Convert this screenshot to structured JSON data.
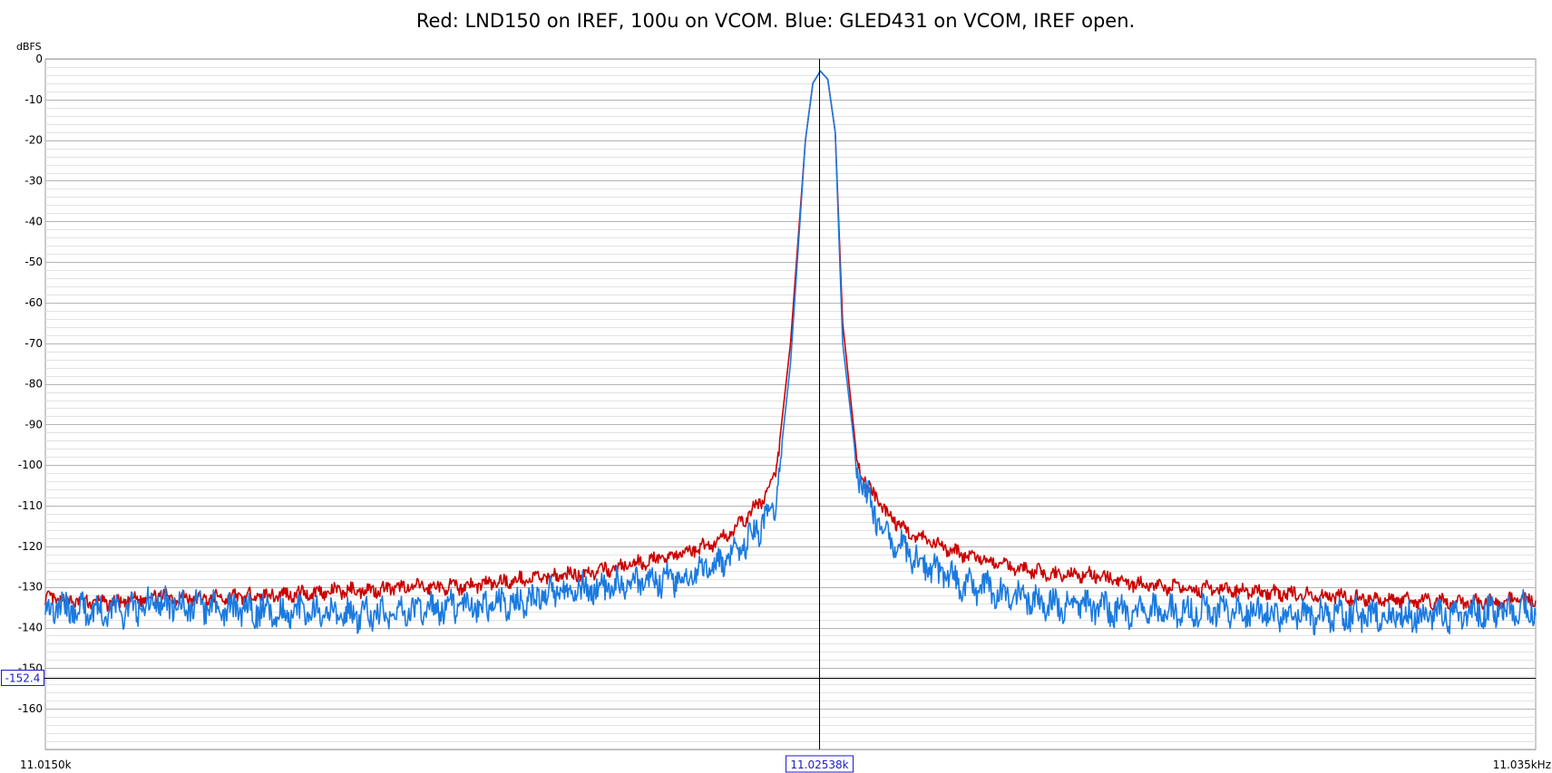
{
  "chart_data": {
    "type": "line",
    "title": "Red: LND150 on IREF, 100u on VCOM. Blue: GLED431 on VCOM, IREF open.",
    "ylabel": "dBFS",
    "xlabel": "",
    "xlim": [
      11.015,
      11.035
    ],
    "ylim": [
      -170,
      0
    ],
    "yticks": [
      0,
      -10,
      -20,
      -30,
      -40,
      -50,
      -60,
      -70,
      -80,
      -90,
      -100,
      -110,
      -120,
      -130,
      -140,
      -150,
      -160
    ],
    "ytick_labels": [
      "0",
      "-10",
      "-20",
      "-30",
      "-40",
      "-50",
      "-60",
      "-70",
      "-80",
      "-90",
      "-100",
      "-110",
      "-120",
      "-130",
      "-140",
      "-150",
      "-160"
    ],
    "x_min_label": "11.0150k",
    "x_max_label": "11.035kHz",
    "grid": true,
    "cursor": {
      "x": 11.02538,
      "y": -152.4,
      "x_label": "11.02538k",
      "y_label": "-152.4"
    },
    "series": [
      {
        "name": "Red: LND150 on IREF, 100u on VCOM",
        "color": "#cc0000",
        "x": [
          11.015,
          11.016,
          11.0165,
          11.017,
          11.018,
          11.019,
          11.02,
          11.0205,
          11.021,
          11.0215,
          11.022,
          11.0225,
          11.023,
          11.0235,
          11.024,
          11.0243,
          11.0246,
          11.0248,
          11.025,
          11.0252,
          11.0253,
          11.0254,
          11.0255,
          11.0256,
          11.0257,
          11.0259,
          11.0261,
          11.0263,
          11.0266,
          11.027,
          11.0275,
          11.028,
          11.0285,
          11.029,
          11.0295,
          11.03,
          11.031,
          11.032,
          11.033,
          11.034,
          11.035
        ],
        "y": [
          -133,
          -134,
          -132,
          -133,
          -132,
          -131,
          -130,
          -130,
          -129,
          -128,
          -127,
          -126,
          -124,
          -122,
          -119,
          -115,
          -109,
          -103,
          -70,
          -20,
          -6,
          -3,
          -5,
          -18,
          -65,
          -100,
          -107,
          -112,
          -117,
          -120,
          -123,
          -125,
          -127,
          -127,
          -129,
          -130,
          -131,
          -132,
          -133,
          -134,
          -133
        ]
      },
      {
        "name": "Blue: GLED431 on VCOM, IREF open",
        "color": "#1a7ae0",
        "x": [
          11.015,
          11.016,
          11.0165,
          11.017,
          11.018,
          11.019,
          11.02,
          11.0205,
          11.021,
          11.0215,
          11.022,
          11.0225,
          11.023,
          11.0235,
          11.024,
          11.0243,
          11.0246,
          11.0248,
          11.025,
          11.0252,
          11.0253,
          11.0254,
          11.0255,
          11.0256,
          11.0257,
          11.0259,
          11.0261,
          11.0263,
          11.0266,
          11.027,
          11.0275,
          11.028,
          11.0285,
          11.029,
          11.0295,
          11.03,
          11.031,
          11.032,
          11.033,
          11.034,
          11.035
        ],
        "y": [
          -135,
          -136,
          -134,
          -135,
          -136,
          -137,
          -136,
          -135,
          -135,
          -133,
          -131,
          -130,
          -129,
          -128,
          -125,
          -121,
          -115,
          -109,
          -75,
          -20,
          -6,
          -3,
          -5,
          -18,
          -70,
          -102,
          -111,
          -117,
          -122,
          -127,
          -130,
          -132,
          -134,
          -135,
          -136,
          -136,
          -136,
          -137,
          -137,
          -137,
          -135
        ]
      }
    ]
  }
}
